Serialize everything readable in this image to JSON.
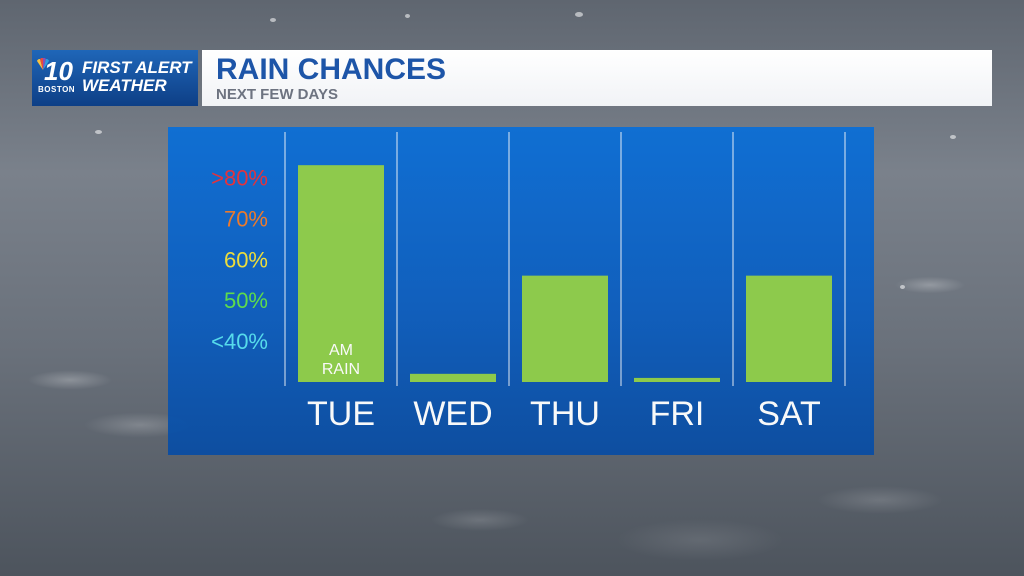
{
  "header": {
    "logo_number": "10",
    "logo_city": "BOSTON",
    "logo_line1": "FIRST ALERT",
    "logo_line2": "WEATHER",
    "title": "RAIN CHANCES",
    "subtitle": "NEXT FEW DAYS"
  },
  "chart_data": {
    "type": "bar",
    "title": "RAIN CHANCES",
    "subtitle": "NEXT FEW DAYS",
    "categories": [
      "TUE",
      "WED",
      "THU",
      "FRI",
      "SAT"
    ],
    "values": [
      83,
      32,
      56,
      31,
      56
    ],
    "ylim": [
      30,
      85
    ],
    "y_tick_labels": [
      {
        "label": ">80%",
        "value": 80,
        "color": "#e8303a"
      },
      {
        "label": "70%",
        "value": 70,
        "color": "#f07a2a"
      },
      {
        "label": "60%",
        "value": 60,
        "color": "#f0e23a"
      },
      {
        "label": "50%",
        "value": 50,
        "color": "#5ee04a"
      },
      {
        "label": "<40%",
        "value": 40,
        "color": "#56e0f0"
      }
    ],
    "annotations": [
      {
        "category": "TUE",
        "lines": [
          "AM",
          "RAIN"
        ]
      }
    ],
    "bar_color": "#8fce4a",
    "grid": "vertical",
    "legend": "none"
  }
}
